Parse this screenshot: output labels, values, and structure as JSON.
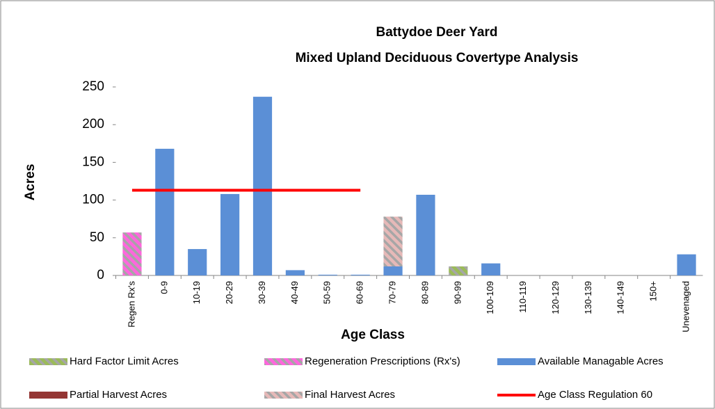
{
  "chart_data": {
    "type": "bar",
    "stacked": true,
    "title": "Battydoe Deer Yard",
    "subtitle": "Mixed Upland Deciduous Covertype Analysis",
    "x_label": "Age Class",
    "y_label": "Acres",
    "categories": [
      "Regen Rx's",
      "0-9",
      "10-19",
      "20-29",
      "30-39",
      "40-49",
      "50-59",
      "60-69",
      "70-79",
      "80-89",
      "90-99",
      "100-109",
      "110-119",
      "120-129",
      "130-139",
      "140-149",
      "150+",
      "Unevenaged"
    ],
    "series": [
      {
        "name": "Hard Factor Limit Acres",
        "type": "bar",
        "color": "#9bbb59",
        "hatched": true,
        "values": [
          0,
          0,
          0,
          0,
          0,
          0,
          0,
          0,
          0,
          0,
          12,
          0,
          0,
          0,
          0,
          0,
          0,
          0
        ]
      },
      {
        "name": "Regeneration Prescriptions (Rx's)",
        "type": "bar",
        "color": "#ff66dd",
        "hatched": true,
        "values": [
          57,
          0,
          0,
          0,
          0,
          0,
          0,
          0,
          0,
          0,
          0,
          0,
          0,
          0,
          0,
          0,
          0,
          0
        ]
      },
      {
        "name": "Available Managable Acres",
        "type": "bar",
        "color": "#5b8fd6",
        "hatched": false,
        "values": [
          0,
          168,
          35,
          108,
          237,
          7,
          1,
          1,
          12,
          107,
          0,
          16,
          0,
          0,
          0,
          0,
          0,
          28
        ]
      },
      {
        "name": "Partial Harvest Acres",
        "type": "bar",
        "color": "#943634",
        "hatched": false,
        "values": [
          0,
          0,
          0,
          0,
          0,
          0,
          0,
          0,
          0,
          0,
          0,
          0,
          0,
          0,
          0,
          0,
          0,
          0
        ]
      },
      {
        "name": "Final Harvest Acres",
        "type": "bar",
        "color": "#e6b9b8",
        "hatched": true,
        "values": [
          0,
          0,
          0,
          0,
          0,
          0,
          0,
          0,
          66,
          0,
          0,
          0,
          0,
          0,
          0,
          0,
          0,
          0
        ]
      },
      {
        "name": "Age Class Regulation 60",
        "type": "line",
        "color": "#ff0000",
        "values": [
          113,
          113,
          113,
          113,
          113,
          113,
          113,
          113,
          null,
          null,
          null,
          null,
          null,
          null,
          null,
          null,
          null,
          null
        ]
      }
    ],
    "ylim": [
      0,
      250
    ],
    "yticks": [
      0,
      50,
      100,
      150,
      200,
      250
    ],
    "grid": false
  }
}
